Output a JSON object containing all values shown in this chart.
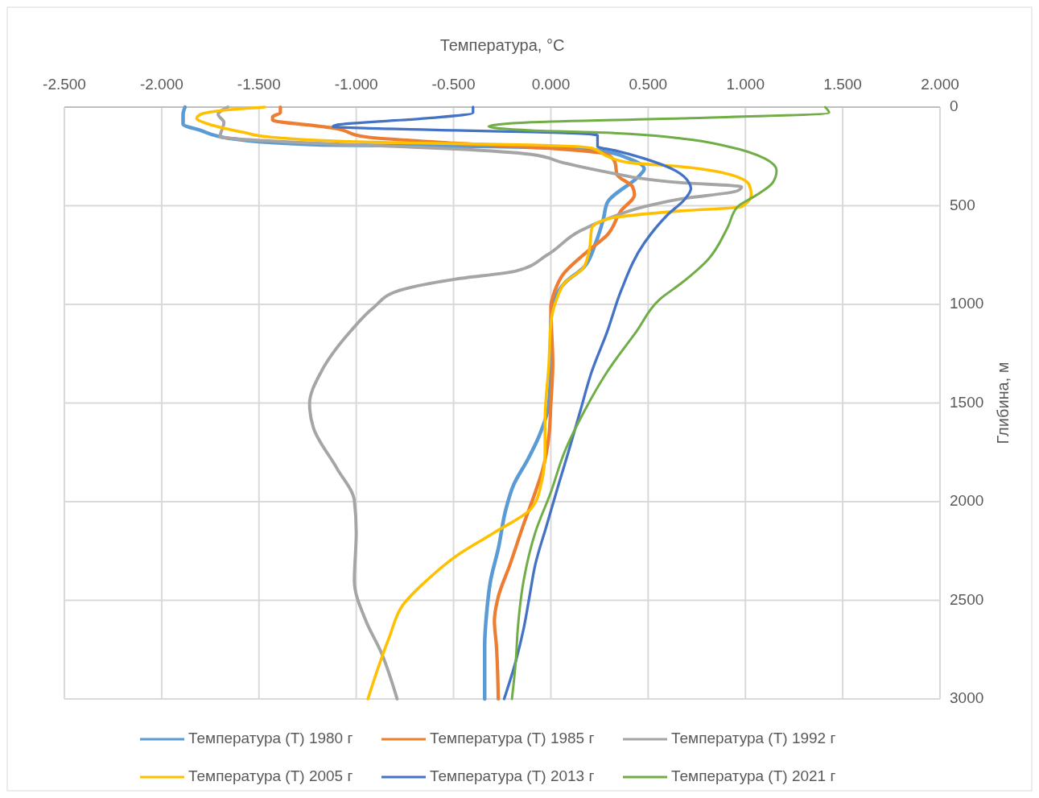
{
  "chart_data": {
    "type": "line",
    "xlabel": "Температура, °C",
    "ylabel": "Глибина, м",
    "xlim": [
      -2.5,
      2.0
    ],
    "xticks": [
      {
        "value": -2.5,
        "label": "-2.500"
      },
      {
        "value": -2.0,
        "label": "-2.000"
      },
      {
        "value": -1.5,
        "label": "-1.500"
      },
      {
        "value": -1.0,
        "label": "-1.000"
      },
      {
        "value": -0.5,
        "label": "-0.500"
      },
      {
        "value": 0,
        "label": "0.000"
      },
      {
        "value": 0.5,
        "label": "0.500"
      },
      {
        "value": 1.0,
        "label": "1.000"
      },
      {
        "value": 1.5,
        "label": "1.500"
      },
      {
        "value": 2.0,
        "label": "2.000"
      }
    ],
    "ylim": [
      3000,
      0
    ],
    "yticks": [
      0,
      500,
      1000,
      1500,
      2000,
      2500,
      3000
    ],
    "grid": true,
    "legend": "bottom",
    "marker": "none",
    "line_style": "solid",
    "series": [
      {
        "name": "Температура (Т) 1980 г",
        "color": "#5b9bd5",
        "x": [
          -1.88,
          -1.89,
          -1.89,
          -1.8,
          -1.65,
          -1.18,
          -0.29,
          0.25,
          0.4,
          0.48,
          0.46,
          0.29,
          0.27,
          0.23,
          0.17,
          0.07,
          0.02,
          0.0,
          0.0,
          -0.01,
          -0.06,
          -0.12,
          -0.19,
          -0.23,
          -0.27,
          -0.31,
          -0.33,
          -0.34,
          -0.34
        ],
        "values": [
          0,
          37,
          86,
          118,
          159,
          192,
          200,
          220,
          261,
          314,
          342,
          485,
          567,
          689,
          811,
          893,
          974,
          1096,
          1300,
          1504,
          1667,
          1789,
          1912,
          2034,
          2238,
          2401,
          2564,
          2727,
          3000
        ]
      },
      {
        "name": "Температура (Т) 1985 г",
        "color": "#ed7d31",
        "x": [
          -1.39,
          -1.39,
          -1.43,
          -1.43,
          -1.18,
          -1.12,
          -0.95,
          -0.49,
          -0.02,
          0.29,
          0.33,
          0.34,
          0.42,
          0.43,
          0.36,
          0.29,
          0.19,
          0.06,
          0.02,
          0.0,
          0.01,
          0.0,
          -0.01,
          -0.04,
          -0.08,
          -0.14,
          -0.21,
          -0.27,
          -0.29,
          -0.28,
          -0.27
        ],
        "values": [
          0,
          29,
          49,
          65,
          98,
          106,
          151,
          183,
          208,
          240,
          281,
          342,
          404,
          444,
          526,
          648,
          730,
          852,
          933,
          1015,
          1300,
          1504,
          1667,
          1830,
          1952,
          2115,
          2319,
          2482,
          2605,
          2727,
          3000
        ]
      },
      {
        "name": "Температура (Т) 1992 г",
        "color": "#a5a5a5",
        "x": [
          -1.66,
          -1.71,
          -1.68,
          -1.7,
          -1.64,
          -0.99,
          -0.49,
          -0.1,
          0.06,
          0.25,
          0.67,
          0.98,
          0.96,
          0.67,
          0.48,
          0.29,
          0.15,
          -0.02,
          -0.18,
          -0.49,
          -0.79,
          -0.91,
          -1.03,
          -1.18,
          -1.24,
          -1.22,
          -1.1,
          -1.01,
          -1.0,
          -1.01,
          -0.95,
          -0.87,
          -0.79
        ],
        "values": [
          0,
          37,
          77,
          151,
          159,
          192,
          212,
          240,
          281,
          322,
          383,
          404,
          424,
          465,
          505,
          567,
          628,
          750,
          831,
          872,
          933,
          1015,
          1137,
          1341,
          1504,
          1626,
          1830,
          1993,
          2156,
          2401,
          2605,
          2768,
          3000
        ]
      },
      {
        "name": "Температура (Т) 2005 г",
        "color": "#ffc000",
        "x": [
          -1.47,
          -1.64,
          -1.8,
          -1.82,
          -1.76,
          -1.57,
          -1.45,
          -0.87,
          -0.1,
          0.21,
          0.29,
          0.4,
          0.67,
          0.87,
          1.02,
          1.03,
          0.98,
          0.67,
          0.29,
          0.21,
          0.2,
          0.17,
          0.07,
          0.03,
          0.0,
          -0.01,
          -0.03,
          -0.03,
          -0.05,
          -0.1,
          -0.29,
          -0.49,
          -0.64,
          -0.76,
          -0.83,
          -0.89,
          -0.94
        ],
        "values": [
          0,
          12,
          37,
          57,
          86,
          130,
          151,
          179,
          192,
          208,
          249,
          281,
          302,
          330,
          395,
          444,
          505,
          526,
          567,
          616,
          709,
          811,
          893,
          974,
          1096,
          1300,
          1586,
          1749,
          1912,
          2034,
          2156,
          2278,
          2401,
          2523,
          2686,
          2849,
          3000
        ]
      },
      {
        "name": "Температура (Т) 2013 г",
        "color": "#4472c4",
        "x": [
          -0.4,
          -0.4,
          -0.64,
          -1.1,
          -1.12,
          -0.49,
          -0.1,
          0.24,
          0.24,
          0.33,
          0.48,
          0.64,
          0.71,
          0.72,
          0.69,
          0.6,
          0.48,
          0.36,
          0.29,
          0.21,
          0.15,
          0.09,
          0.04,
          -0.02,
          -0.08,
          -0.11,
          -0.14,
          -0.18,
          -0.24
        ],
        "values": [
          0,
          29,
          57,
          90,
          98,
          118,
          126,
          143,
          200,
          220,
          261,
          322,
          383,
          412,
          465,
          546,
          689,
          933,
          1137,
          1341,
          1545,
          1749,
          1912,
          2115,
          2319,
          2482,
          2645,
          2808,
          3000
        ]
      },
      {
        "name": "Температура (Т) 2021 г",
        "color": "#70ad47",
        "x": [
          1.41,
          1.43,
          0.67,
          -0.1,
          -0.32,
          -0.1,
          0.29,
          0.67,
          0.91,
          1.1,
          1.16,
          1.14,
          1.06,
          0.96,
          0.91,
          0.81,
          0.67,
          0.56,
          0.44,
          0.29,
          0.17,
          0.07,
          0.0,
          -0.08,
          -0.14,
          -0.17,
          -0.18,
          -0.2
        ],
        "values": [
          0,
          29,
          57,
          77,
          98,
          118,
          130,
          159,
          200,
          261,
          322,
          383,
          444,
          505,
          607,
          770,
          893,
          974,
          1137,
          1341,
          1545,
          1749,
          1952,
          2156,
          2401,
          2645,
          2808,
          3000
        ]
      }
    ]
  }
}
